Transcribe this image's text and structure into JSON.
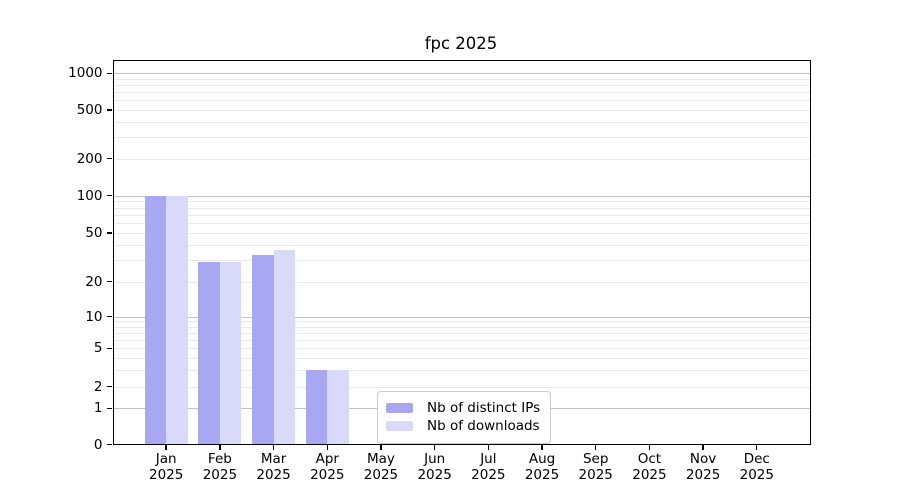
{
  "chart_data": {
    "type": "bar",
    "title": "fpc 2025",
    "scale": "symlog",
    "grid": true,
    "categories": [
      "Jan",
      "Feb",
      "Mar",
      "Apr",
      "May",
      "Jun",
      "Jul",
      "Aug",
      "Sep",
      "Oct",
      "Nov",
      "Dec"
    ],
    "x_tick_year": "2025",
    "series": [
      {
        "name": "Nb of distinct IPs",
        "color": "#a7a7f2",
        "values": [
          100,
          29,
          33,
          3,
          0,
          0,
          0,
          0,
          0,
          0,
          0,
          0
        ]
      },
      {
        "name": "Nb of downloads",
        "color": "#d9d9f9",
        "values": [
          100,
          29,
          36,
          3,
          0,
          0,
          0,
          0,
          0,
          0,
          0,
          0
        ]
      }
    ],
    "y_ticks": [
      0,
      1,
      2,
      5,
      10,
      20,
      50,
      100,
      200,
      500,
      1000
    ],
    "ylim": [
      0,
      1350
    ],
    "legend_position": "inside-bottom-center"
  },
  "colors": {
    "grid_minor": "#e9e9e9",
    "grid_major": "#c2c2c2",
    "axis": "#000000",
    "background": "#ffffff"
  }
}
